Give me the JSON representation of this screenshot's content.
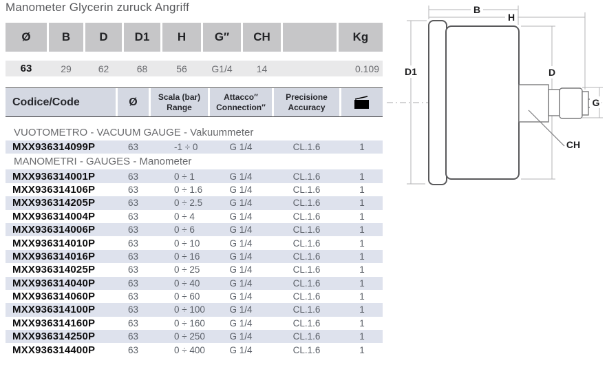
{
  "title": "Manometer Glycerin zuruck Angriff",
  "dimensions_table": {
    "headers": [
      "Ø",
      "B",
      "D",
      "D1",
      "H",
      "G″",
      "CH",
      "",
      "Kg"
    ],
    "values": [
      "63",
      "29",
      "62",
      "68",
      "56",
      "G1/4",
      "14",
      "",
      "0.109"
    ]
  },
  "products_table": {
    "header": {
      "code": "Codice/Code",
      "diameter": "Ø",
      "range_line1": "Scala (bar)",
      "range_line2": "Range",
      "connection_line1": "Attacco″",
      "connection_line2": "Connection″",
      "accuracy_line1": "Precisione",
      "accuracy_line2": "Accuracy",
      "package_icon": "package-icon"
    },
    "sections": [
      {
        "label": "VUOTOMETRO - VACUUM GAUGE - Vakuummeter",
        "rows": [
          {
            "code": "MXX936314099P",
            "diameter": "63",
            "range": "-1 ÷ 0",
            "connection": "G 1/4",
            "accuracy": "CL.1.6",
            "qty": "1"
          }
        ]
      },
      {
        "label": "MANOMETRI - GAUGES - Manometer",
        "rows": [
          {
            "code": "MXX936314001P",
            "diameter": "63",
            "range": "0 ÷ 1",
            "connection": "G 1/4",
            "accuracy": "CL.1.6",
            "qty": "1"
          },
          {
            "code": "MXX936314106P",
            "diameter": "63",
            "range": "0 ÷ 1.6",
            "connection": "G 1/4",
            "accuracy": "CL.1.6",
            "qty": "1"
          },
          {
            "code": "MXX936314205P",
            "diameter": "63",
            "range": "0 ÷ 2.5",
            "connection": "G 1/4",
            "accuracy": "CL.1.6",
            "qty": "1"
          },
          {
            "code": "MXX936314004P",
            "diameter": "63",
            "range": "0 ÷ 4",
            "connection": "G 1/4",
            "accuracy": "CL.1.6",
            "qty": "1"
          },
          {
            "code": "MXX936314006P",
            "diameter": "63",
            "range": "0 ÷ 6",
            "connection": "G 1/4",
            "accuracy": "CL.1.6",
            "qty": "1"
          },
          {
            "code": "MXX936314010P",
            "diameter": "63",
            "range": "0 ÷ 10",
            "connection": "G 1/4",
            "accuracy": "CL.1.6",
            "qty": "1"
          },
          {
            "code": "MXX936314016P",
            "diameter": "63",
            "range": "0 ÷ 16",
            "connection": "G 1/4",
            "accuracy": "CL.1.6",
            "qty": "1"
          },
          {
            "code": "MXX936314025P",
            "diameter": "63",
            "range": "0 ÷ 25",
            "connection": "G 1/4",
            "accuracy": "CL.1.6",
            "qty": "1"
          },
          {
            "code": "MXX936314040P",
            "diameter": "63",
            "range": "0 ÷ 40",
            "connection": "G 1/4",
            "accuracy": "CL.1.6",
            "qty": "1"
          },
          {
            "code": "MXX936314060P",
            "diameter": "63",
            "range": "0 ÷ 60",
            "connection": "G 1/4",
            "accuracy": "CL.1.6",
            "qty": "1"
          },
          {
            "code": "MXX936314100P",
            "diameter": "63",
            "range": "0 ÷ 100",
            "connection": "G 1/4",
            "accuracy": "CL.1.6",
            "qty": "1"
          },
          {
            "code": "MXX936314160P",
            "diameter": "63",
            "range": "0 ÷ 160",
            "connection": "G 1/4",
            "accuracy": "CL.1.6",
            "qty": "1"
          },
          {
            "code": "MXX936314250P",
            "diameter": "63",
            "range": "0 ÷ 250",
            "connection": "G 1/4",
            "accuracy": "CL.1.6",
            "qty": "1"
          },
          {
            "code": "MXX936314400P",
            "diameter": "63",
            "range": "0 ÷ 400",
            "connection": "G 1/4",
            "accuracy": "CL.1.6",
            "qty": "1"
          }
        ]
      }
    ]
  },
  "diagram": {
    "labels": {
      "b": "B",
      "h": "H",
      "d1": "D1",
      "d": "D",
      "g": "G",
      "ch": "CH"
    }
  },
  "colors": {
    "header1_bg": "#c6c6c8",
    "row1_bg": "#e9e9ea",
    "header2_bg": "#d4d8e2",
    "shaded_row_bg": "#dee2ed",
    "dark_border": "#4e4e50",
    "gray_text": "#5b6068",
    "section_text": "#696a6d"
  }
}
